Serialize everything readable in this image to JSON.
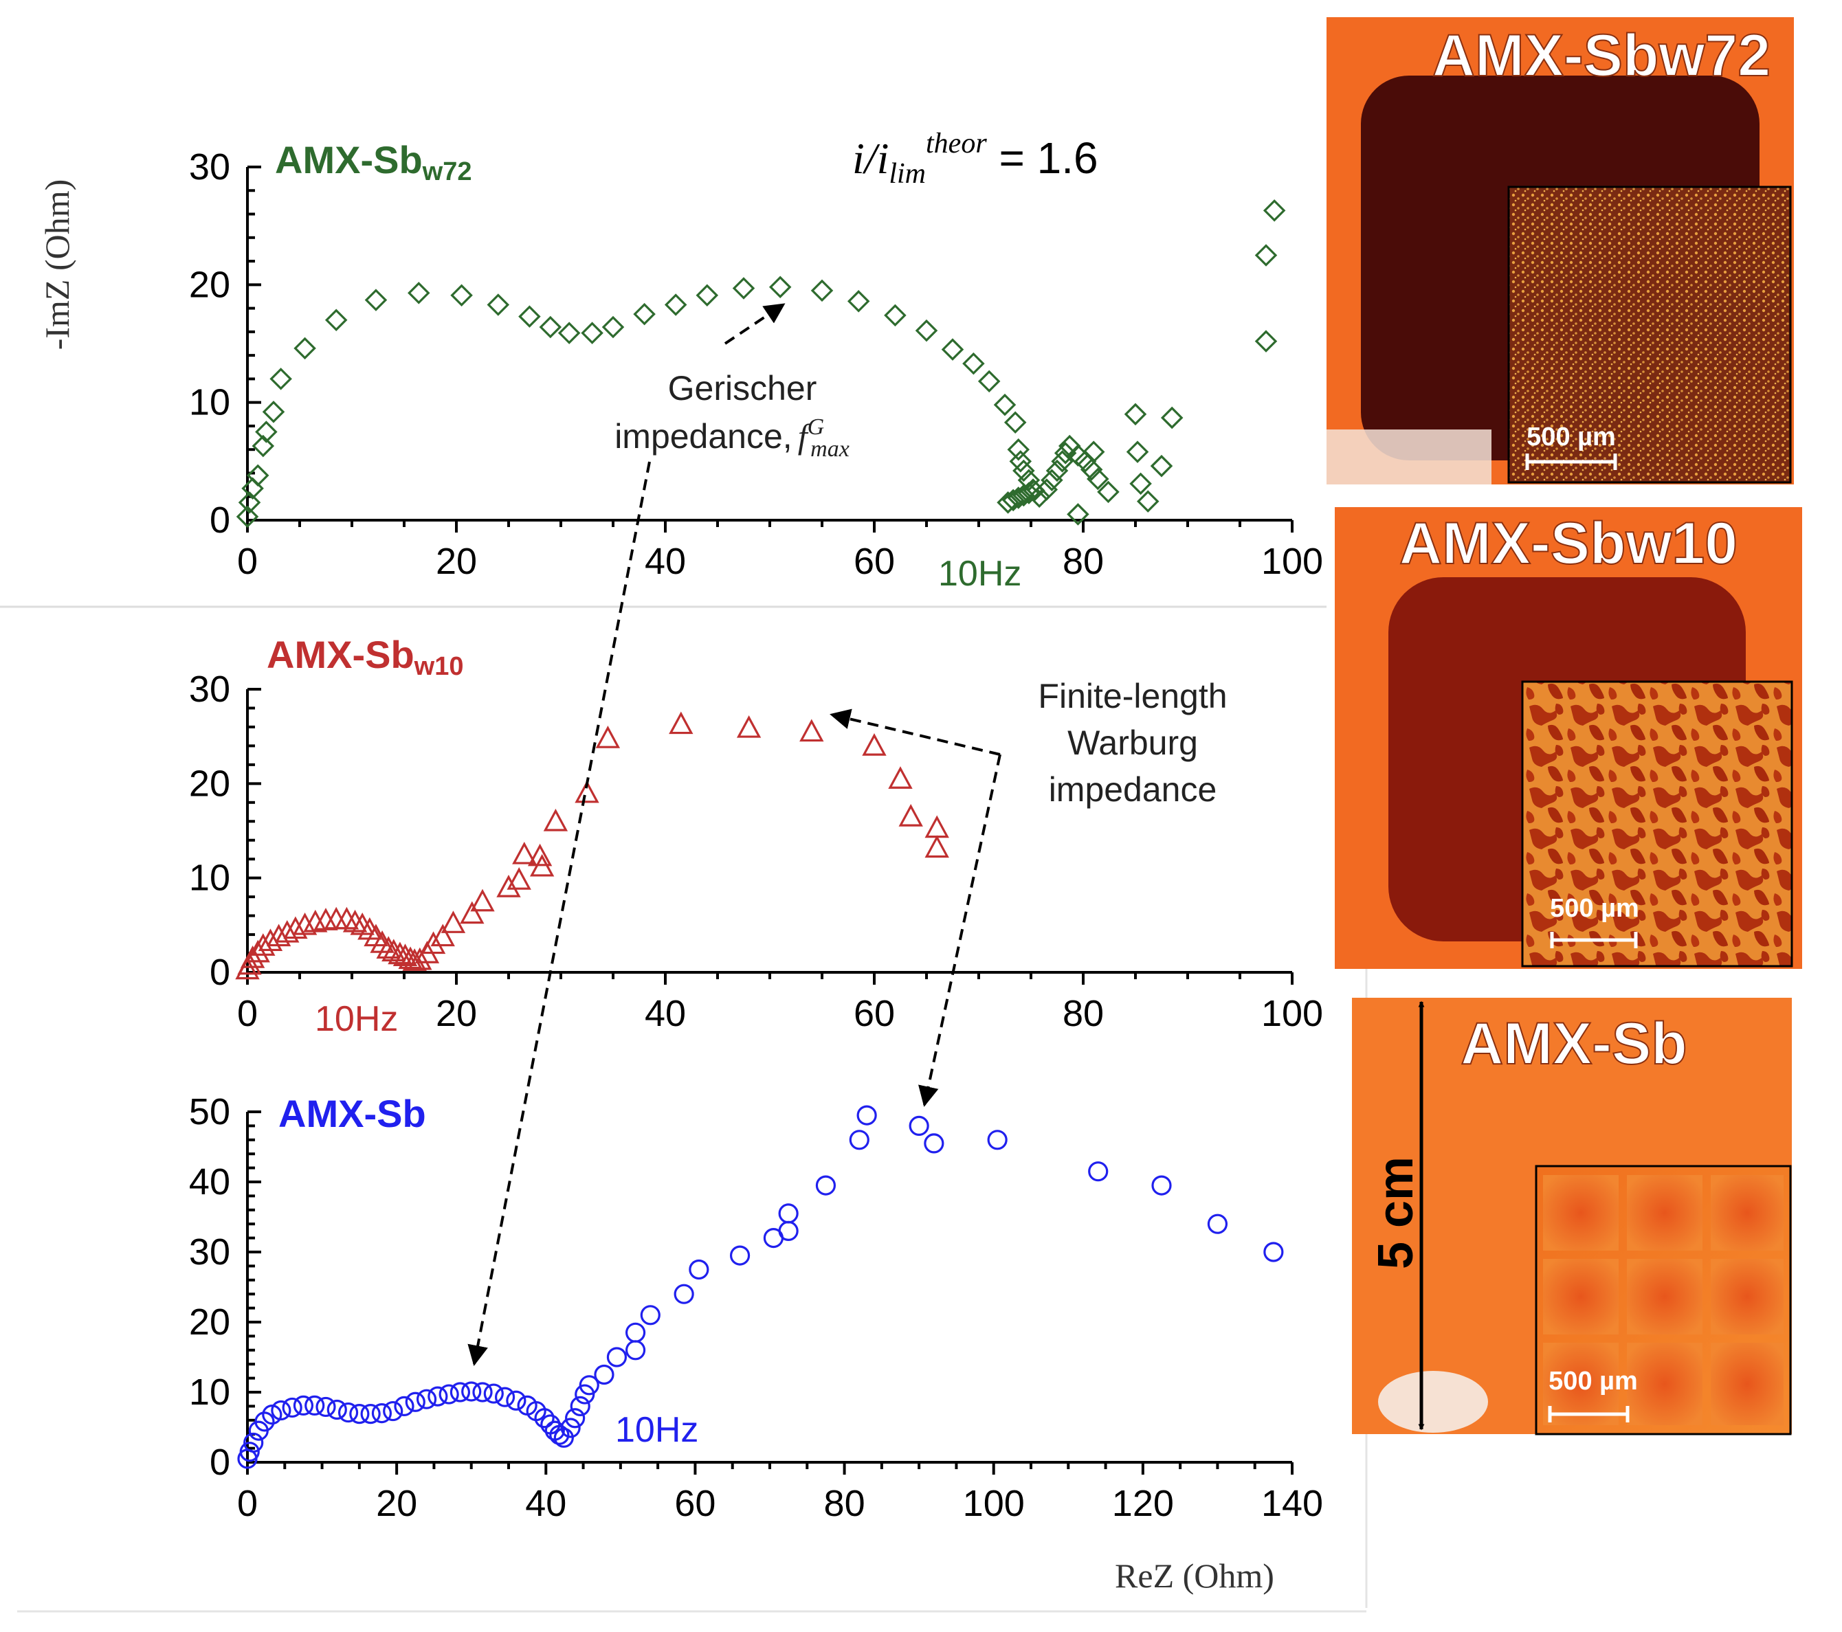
{
  "colors": {
    "green": "#2e6b2e",
    "red": "#c03030",
    "blue": "#2020ee",
    "axis": "#000000",
    "orange": "#f26a22",
    "dark": "#4a0c08",
    "dots": "#e8a040"
  },
  "annotations": {
    "ratio_label": "i/i",
    "ratio_sub": "lim",
    "ratio_sup": "theor",
    "ratio_value": " = 1.6",
    "gerischer_line1": "Gerischer",
    "gerischer_line2": "impedance,",
    "gerischer_f": "f",
    "gerischer_sup": "G",
    "gerischer_sub": "max",
    "warburg_line1": "Finite-length",
    "warburg_line2": "Warburg",
    "warburg_line3": "impedance"
  },
  "photos": [
    {
      "title": "AMX-Sbw72",
      "scale": "500 µm",
      "pattern": "dots"
    },
    {
      "title": "AMX-Sbw10",
      "scale": "500 µm",
      "pattern": "blobs"
    },
    {
      "title": "AMX-Sb",
      "scale": "500 µm",
      "pattern": "grid",
      "dimension": "5 cm"
    }
  ],
  "chart_data": [
    {
      "type": "scatter",
      "name_base": "AMX-Sb",
      "name_sub": "w72",
      "marker": "diamond",
      "color": "#2e6b2e",
      "xlim": [
        0,
        100
      ],
      "ylim": [
        0,
        30
      ],
      "xticks": [
        0,
        20,
        40,
        60,
        80,
        100
      ],
      "yticks": [
        0,
        10,
        20,
        30
      ],
      "ylabel": "-ImZ (Ohm)",
      "xlabel": "",
      "freq_label": "10Hz",
      "points": [
        [
          0,
          0.3
        ],
        [
          0.2,
          1.5
        ],
        [
          0.5,
          2.7
        ],
        [
          1,
          3.8
        ],
        [
          1.5,
          6.3
        ],
        [
          1.8,
          7.5
        ],
        [
          2.5,
          9.2
        ],
        [
          3.2,
          12
        ],
        [
          5.5,
          14.6
        ],
        [
          8.5,
          17
        ],
        [
          12.3,
          18.7
        ],
        [
          16.4,
          19.3
        ],
        [
          20.5,
          19.1
        ],
        [
          24,
          18.3
        ],
        [
          27,
          17.3
        ],
        [
          29,
          16.4
        ],
        [
          30.8,
          15.9
        ],
        [
          33,
          15.9
        ],
        [
          35,
          16.4
        ],
        [
          38,
          17.5
        ],
        [
          41,
          18.3
        ],
        [
          44,
          19.1
        ],
        [
          47.5,
          19.7
        ],
        [
          51,
          19.8
        ],
        [
          55,
          19.5
        ],
        [
          58.5,
          18.6
        ],
        [
          62,
          17.4
        ],
        [
          65,
          16.1
        ],
        [
          67.5,
          14.5
        ],
        [
          69.5,
          13.3
        ],
        [
          71,
          11.8
        ],
        [
          72.5,
          9.8
        ],
        [
          73.5,
          8.3
        ],
        [
          73.8,
          6
        ],
        [
          74,
          5
        ],
        [
          74.3,
          4.2
        ],
        [
          74.8,
          3.4
        ],
        [
          75.2,
          2.6
        ],
        [
          75.8,
          2
        ],
        [
          76.5,
          2.6
        ],
        [
          77,
          3.4
        ],
        [
          77.5,
          4.2
        ],
        [
          78,
          5
        ],
        [
          78.3,
          5.7
        ],
        [
          78.7,
          6.3
        ],
        [
          79.5,
          5.5
        ],
        [
          80.2,
          5
        ],
        [
          80.8,
          4.3
        ],
        [
          81.4,
          3.5
        ],
        [
          81,
          5.8
        ],
        [
          82.4,
          2.4
        ],
        [
          79.5,
          0.5
        ],
        [
          85,
          9.0
        ],
        [
          85.2,
          5.8
        ],
        [
          85.5,
          3.1
        ],
        [
          86.2,
          1.6
        ],
        [
          87.5,
          4.6
        ],
        [
          88.5,
          8.7
        ],
        [
          97.5,
          15.2
        ],
        [
          97.5,
          22.5
        ],
        [
          98.3,
          26.3
        ],
        [
          72.8,
          1.5
        ],
        [
          73.3,
          1.7
        ],
        [
          73.8,
          1.9
        ],
        [
          74.3,
          2.1
        ],
        [
          74.8,
          2.3
        ],
        [
          75.3,
          2.5
        ]
      ]
    },
    {
      "type": "scatter",
      "name_base": "AMX-Sb",
      "name_sub": "w10",
      "marker": "triangle",
      "color": "#c03030",
      "xlim": [
        0,
        100
      ],
      "ylim": [
        0,
        30
      ],
      "xticks": [
        0,
        20,
        40,
        60,
        80,
        100
      ],
      "yticks": [
        0,
        10,
        20,
        30
      ],
      "xlabel": "",
      "ylabel": "",
      "freq_label": "10Hz",
      "points": [
        [
          0,
          0.3
        ],
        [
          0.2,
          0.8
        ],
        [
          0.5,
          1.5
        ],
        [
          1,
          2.1
        ],
        [
          1.5,
          2.8
        ],
        [
          2.2,
          3.3
        ],
        [
          3,
          3.8
        ],
        [
          3.8,
          4.2
        ],
        [
          4.6,
          4.6
        ],
        [
          5.5,
          5
        ],
        [
          6.5,
          5.3
        ],
        [
          7.5,
          5.5
        ],
        [
          8.5,
          5.6
        ],
        [
          9.5,
          5.6
        ],
        [
          10.3,
          5.3
        ],
        [
          11,
          5
        ],
        [
          11.7,
          4.5
        ],
        [
          12.3,
          3.8
        ],
        [
          12.9,
          3.1
        ],
        [
          13.5,
          2.5
        ],
        [
          14,
          2.2
        ],
        [
          14.6,
          1.9
        ],
        [
          15.1,
          1.7
        ],
        [
          15.6,
          1.4
        ],
        [
          16,
          1.2
        ],
        [
          16.5,
          1.3
        ],
        [
          17.2,
          2
        ],
        [
          17.8,
          3
        ],
        [
          18.7,
          3.8
        ],
        [
          19.7,
          5.2
        ],
        [
          21.5,
          6.2
        ],
        [
          22.5,
          7.5
        ],
        [
          25,
          9
        ],
        [
          26,
          9.8
        ],
        [
          26.5,
          12.5
        ],
        [
          28,
          12.3
        ],
        [
          28.2,
          11.2
        ],
        [
          29.5,
          16
        ],
        [
          32.5,
          19
        ],
        [
          34.5,
          24.8
        ],
        [
          41.5,
          26.3
        ],
        [
          48,
          25.9
        ],
        [
          54,
          25.5
        ],
        [
          60,
          24
        ],
        [
          62.5,
          20.5
        ],
        [
          63.5,
          16.5
        ],
        [
          66,
          15.3
        ],
        [
          66,
          13.2
        ]
      ]
    },
    {
      "type": "scatter",
      "name_base": "AMX-Sb",
      "name_sub": "",
      "marker": "circle",
      "color": "#2020ee",
      "xlim": [
        0,
        140
      ],
      "ylim": [
        0,
        50
      ],
      "xticks": [
        0,
        20,
        40,
        60,
        80,
        100,
        120,
        140
      ],
      "yticks": [
        0,
        10,
        20,
        30,
        40,
        50
      ],
      "xlabel": "ReZ (Ohm)",
      "ylabel": "",
      "freq_label": "10Hz",
      "points": [
        [
          0,
          0.5
        ],
        [
          0.3,
          1.5
        ],
        [
          0.8,
          2.8
        ],
        [
          1.5,
          4.5
        ],
        [
          2.3,
          5.8
        ],
        [
          3.3,
          6.8
        ],
        [
          4.5,
          7.4
        ],
        [
          6,
          7.8
        ],
        [
          7.5,
          8.1
        ],
        [
          9,
          8.1
        ],
        [
          10.5,
          7.9
        ],
        [
          12,
          7.5
        ],
        [
          13.5,
          7.1
        ],
        [
          15,
          6.9
        ],
        [
          16.5,
          6.9
        ],
        [
          18,
          7
        ],
        [
          19.5,
          7.3
        ],
        [
          21,
          8
        ],
        [
          22.5,
          8.6
        ],
        [
          24,
          9
        ],
        [
          25.5,
          9.4
        ],
        [
          27,
          9.7
        ],
        [
          28.5,
          10
        ],
        [
          30,
          10.1
        ],
        [
          31.5,
          10
        ],
        [
          33,
          9.8
        ],
        [
          34.5,
          9.3
        ],
        [
          36,
          8.8
        ],
        [
          37.5,
          8.1
        ],
        [
          38.7,
          7.3
        ],
        [
          39.8,
          6.3
        ],
        [
          40.6,
          5.4
        ],
        [
          41.2,
          4.5
        ],
        [
          41.8,
          3.9
        ],
        [
          42.4,
          3.5
        ],
        [
          43.3,
          4.9
        ],
        [
          43.9,
          6.3
        ],
        [
          44.6,
          8
        ],
        [
          45.2,
          9.7
        ],
        [
          45.8,
          11
        ],
        [
          47.8,
          12.5
        ],
        [
          49.5,
          15
        ],
        [
          52,
          16
        ],
        [
          52,
          18.5
        ],
        [
          54,
          21
        ],
        [
          58.5,
          24
        ],
        [
          60.5,
          27.5
        ],
        [
          66,
          29.5
        ],
        [
          70.5,
          32
        ],
        [
          72.5,
          33
        ],
        [
          72.5,
          35.5
        ],
        [
          77.5,
          39.5
        ],
        [
          82,
          46
        ],
        [
          83,
          49.5
        ],
        [
          90,
          48
        ],
        [
          92,
          45.5
        ],
        [
          100.5,
          46
        ],
        [
          114,
          41.5
        ],
        [
          122.5,
          39.5
        ],
        [
          130,
          34
        ],
        [
          137.5,
          30
        ]
      ]
    }
  ]
}
